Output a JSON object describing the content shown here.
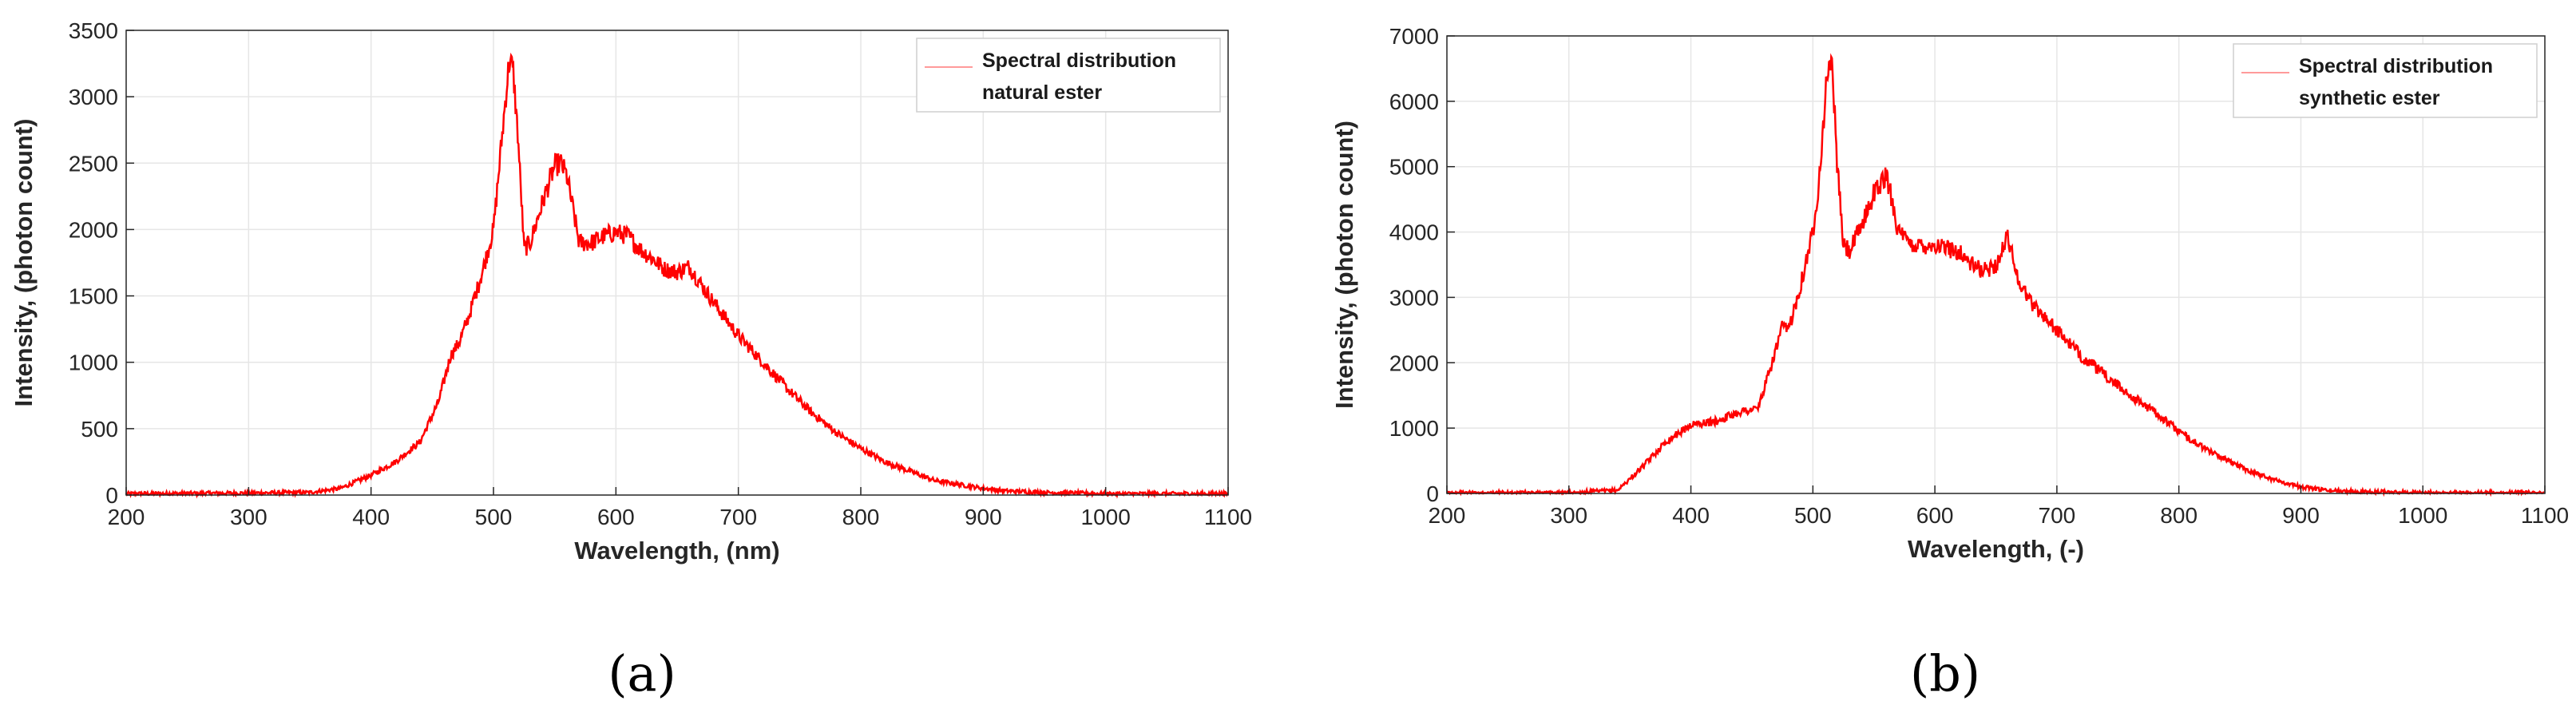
{
  "chart_data": [
    {
      "type": "line",
      "panel_label": "(a)",
      "xlabel": "Wavelength, (nm)",
      "ylabel": "Intensity, (photon count)",
      "xlim": [
        200,
        1100
      ],
      "ylim": [
        0,
        3500
      ],
      "xticks": [
        200,
        300,
        400,
        500,
        600,
        700,
        800,
        900,
        1000,
        1100
      ],
      "yticks": [
        0,
        500,
        1000,
        1500,
        2000,
        2500,
        3000,
        3500
      ],
      "grid": true,
      "legend_position": "top-right",
      "series": [
        {
          "legend": [
            "Spectral distribution",
            "natural ester"
          ],
          "color": "#ff0000",
          "x": [
            200,
            300,
            350,
            375,
            400,
            420,
            440,
            455,
            465,
            472,
            480,
            490,
            500,
            505,
            510,
            513,
            516,
            520,
            525,
            530,
            540,
            550,
            555,
            560,
            565,
            570,
            580,
            590,
            600,
            610,
            620,
            630,
            640,
            650,
            660,
            670,
            680,
            700,
            720,
            740,
            760,
            780,
            800,
            820,
            840,
            860,
            880,
            900,
            920,
            950,
            1000,
            1100
          ],
          "y": [
            10,
            15,
            20,
            50,
            150,
            250,
            400,
            700,
            1050,
            1150,
            1350,
            1650,
            2000,
            2500,
            3000,
            3280,
            3200,
            2700,
            1850,
            1900,
            2200,
            2480,
            2500,
            2400,
            2150,
            1900,
            1900,
            1950,
            1980,
            1950,
            1850,
            1780,
            1700,
            1680,
            1720,
            1580,
            1450,
            1200,
            1000,
            800,
            620,
            470,
            350,
            250,
            180,
            110,
            80,
            50,
            30,
            20,
            10,
            10
          ]
        }
      ]
    },
    {
      "type": "line",
      "panel_label": "(b)",
      "xlabel": "Wavelength, (-)",
      "ylabel": "Intensity, (photon count)",
      "xlim": [
        200,
        1100
      ],
      "ylim": [
        0,
        7000
      ],
      "xticks": [
        200,
        300,
        400,
        500,
        600,
        700,
        800,
        900,
        1000,
        1100
      ],
      "yticks": [
        0,
        1000,
        2000,
        3000,
        4000,
        5000,
        6000,
        7000
      ],
      "grid": true,
      "legend_position": "top-right",
      "series": [
        {
          "legend": [
            "Spectral distribution",
            "synthetic ester"
          ],
          "color": "#ff0000",
          "x": [
            200,
            300,
            340,
            360,
            380,
            400,
            420,
            440,
            455,
            465,
            475,
            480,
            490,
            500,
            505,
            510,
            513,
            516,
            520,
            525,
            530,
            540,
            550,
            560,
            565,
            570,
            580,
            600,
            620,
            630,
            640,
            650,
            655,
            660,
            665,
            670,
            680,
            700,
            720,
            740,
            760,
            780,
            800,
            820,
            840,
            860,
            880,
            900,
            920,
            950,
            1000,
            1100
          ],
          "y": [
            10,
            10,
            50,
            400,
            800,
            1050,
            1100,
            1250,
            1300,
            1900,
            2550,
            2500,
            3200,
            4000,
            4800,
            6000,
            6650,
            6500,
            5000,
            3800,
            3700,
            4100,
            4600,
            4850,
            4500,
            4000,
            3800,
            3800,
            3700,
            3500,
            3400,
            3500,
            3700,
            3950,
            3500,
            3200,
            2900,
            2500,
            2100,
            1800,
            1500,
            1250,
            950,
            700,
            500,
            330,
            200,
            100,
            50,
            30,
            10,
            10
          ]
        }
      ]
    }
  ]
}
